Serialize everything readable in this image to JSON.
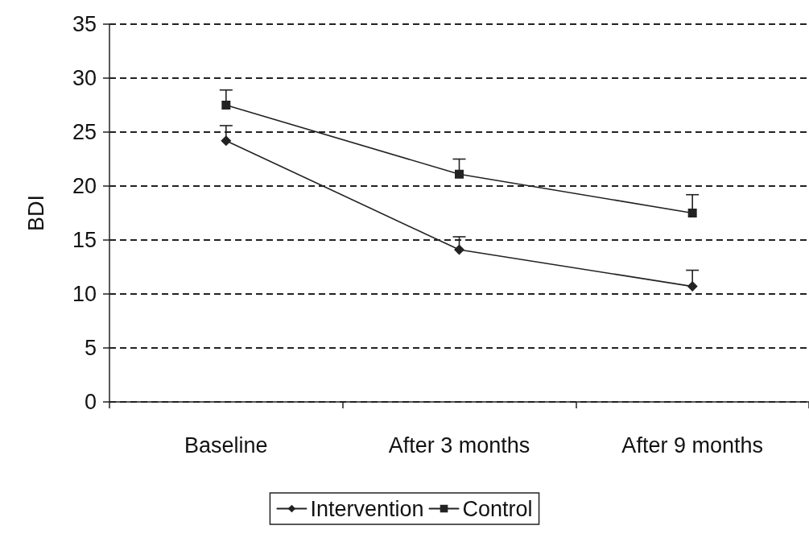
{
  "chart_data": {
    "type": "line",
    "ylabel": "BDI",
    "categories": [
      "Baseline",
      "After 3 months",
      "After 9 months"
    ],
    "series": [
      {
        "name": "Intervention",
        "color": "#222222",
        "marker": "diamond",
        "values": [
          24.2,
          14.1,
          10.7
        ],
        "errors": [
          [
            24.2,
            25.6
          ],
          [
            14.1,
            15.3
          ],
          [
            10.7,
            12.2
          ]
        ]
      },
      {
        "name": "Control",
        "color": "#222222",
        "marker": "square",
        "values": [
          27.5,
          21.1,
          17.5
        ],
        "errors": [
          [
            27.5,
            28.9
          ],
          [
            21.1,
            22.5
          ],
          [
            17.5,
            19.2
          ]
        ]
      }
    ],
    "ylim": [
      0,
      35
    ],
    "yticks": [
      0,
      5,
      10,
      15,
      20,
      25,
      30,
      35
    ],
    "grid": "y",
    "line_style": "solid",
    "legend": "bottom"
  }
}
